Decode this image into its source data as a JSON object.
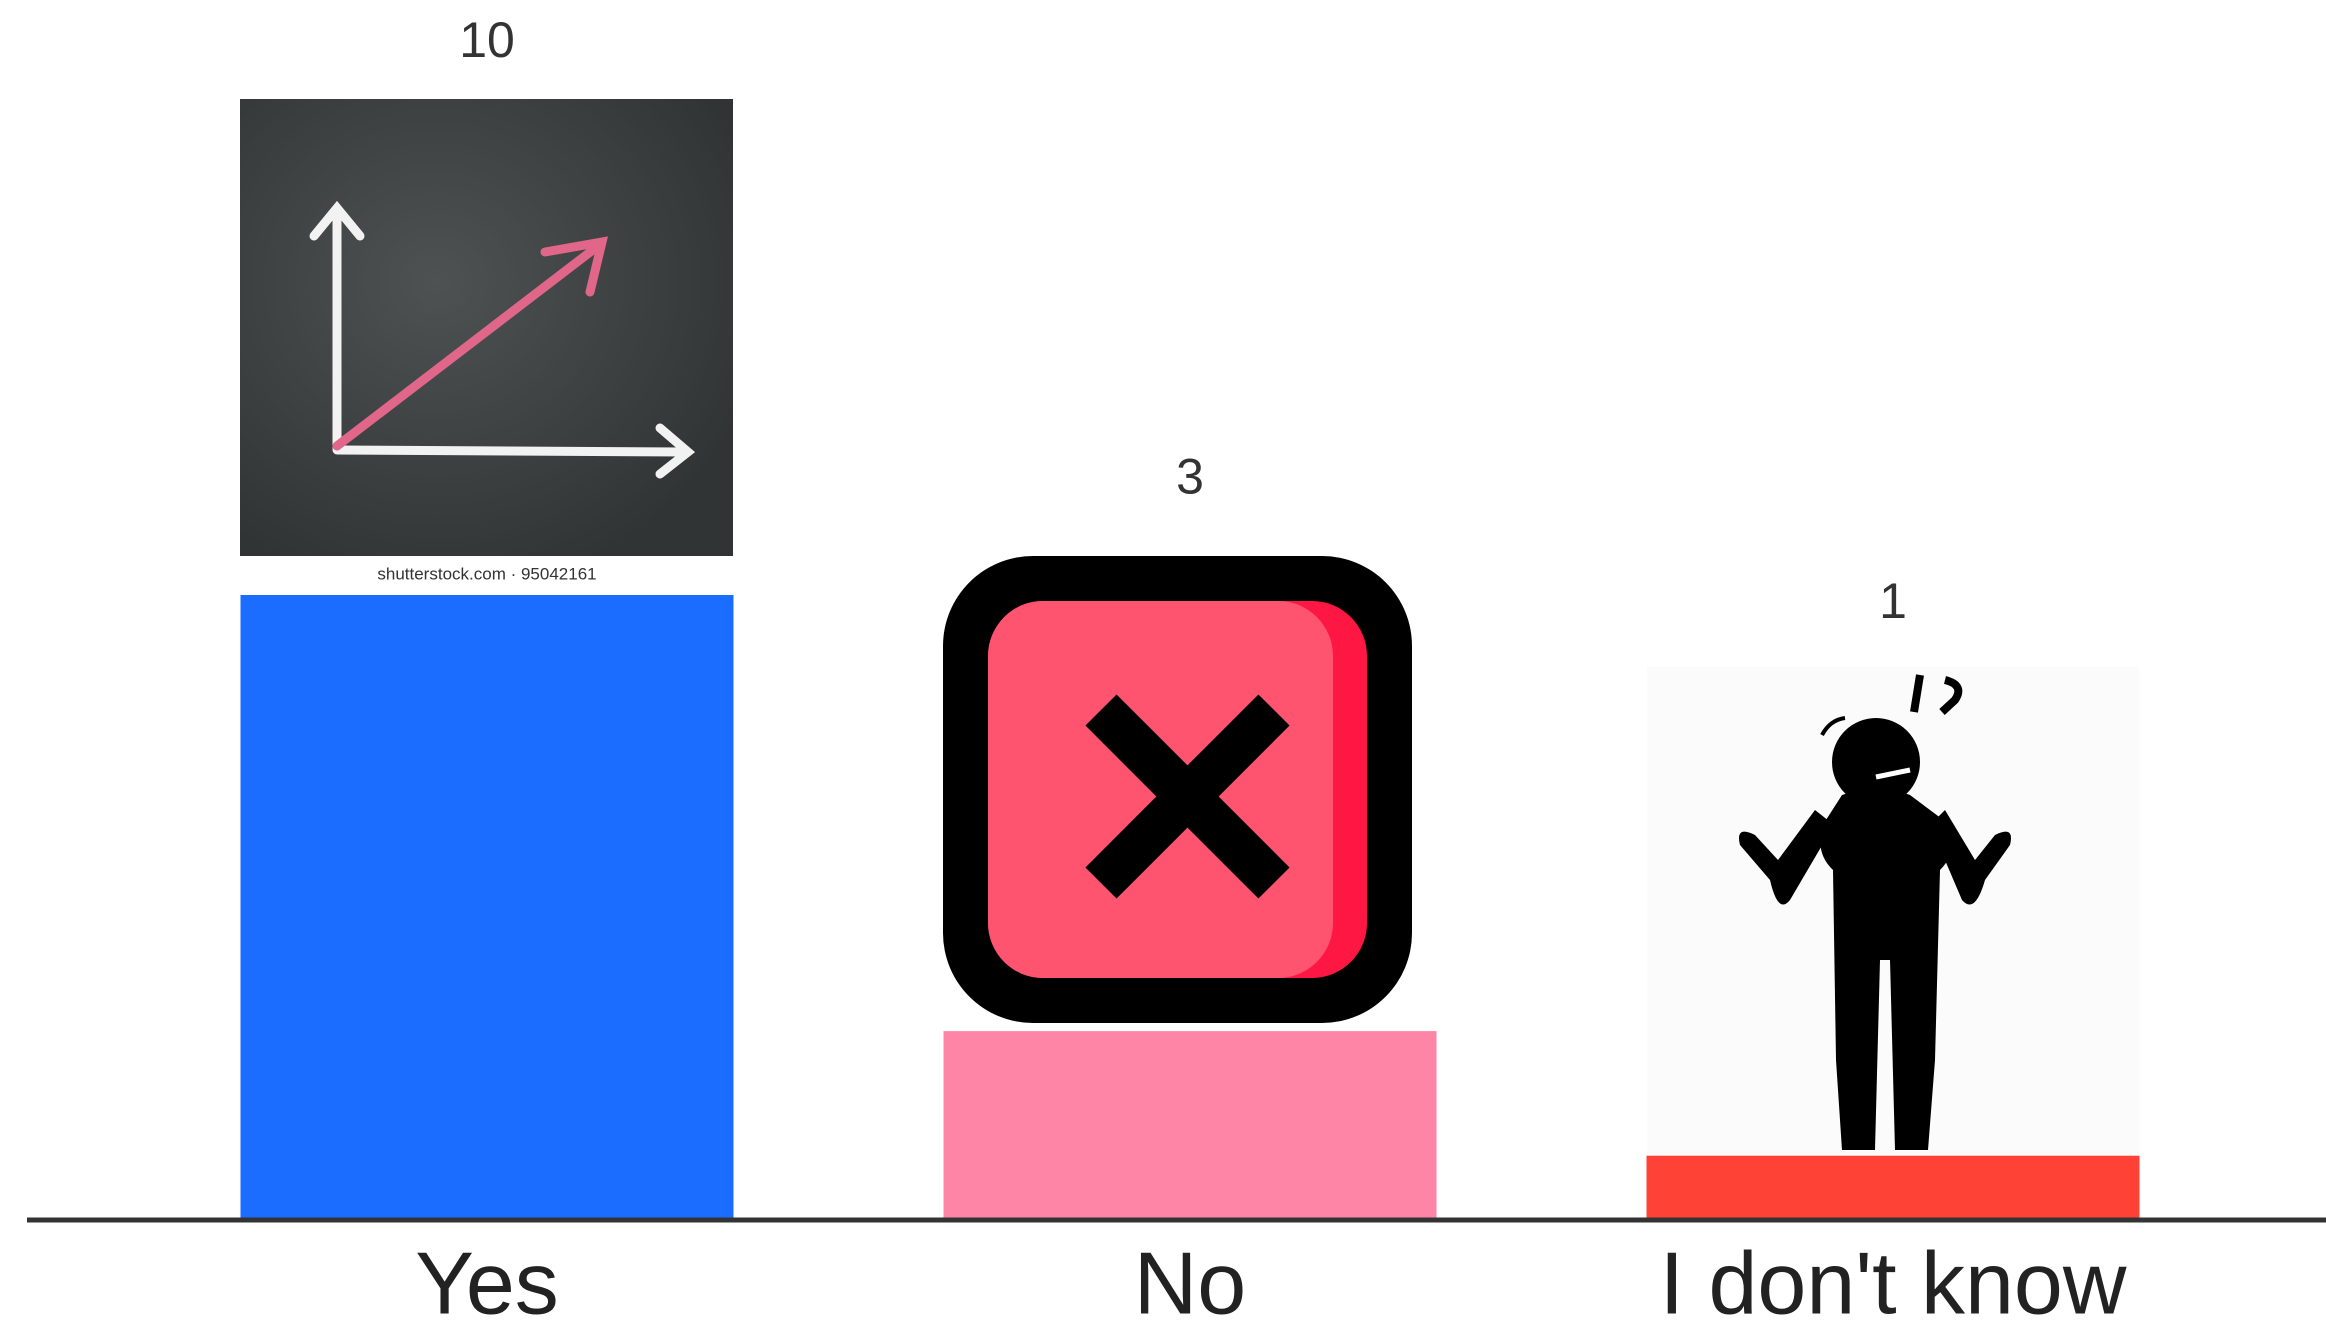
{
  "chart_data": {
    "type": "bar",
    "categories": [
      "Yes",
      "No",
      "I don't know"
    ],
    "values": [
      10,
      3,
      1
    ],
    "colors": [
      "#1a6dff",
      "#ff85a6",
      "#ff4136"
    ],
    "annotations": [
      "shutterstock.com · 95042161"
    ]
  }
}
